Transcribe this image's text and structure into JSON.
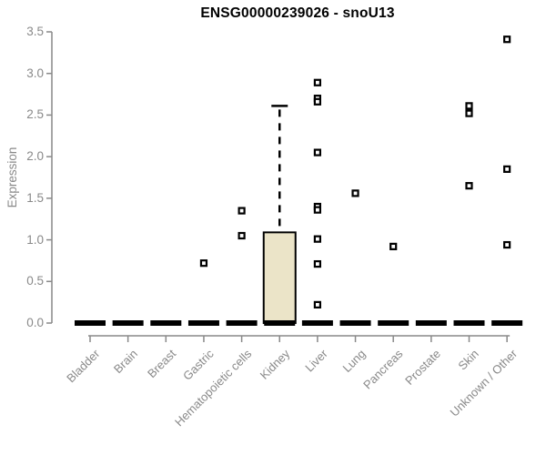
{
  "chart_data": {
    "type": "boxplot",
    "title": "ENSG00000239026 - snoU13",
    "ylabel": "Expression",
    "xlabel": "",
    "ylim": [
      0,
      3.5
    ],
    "ytick_step": 0.5,
    "grid": false,
    "legend": null,
    "categories": [
      "Bladder",
      "Brain",
      "Breast",
      "Gastric",
      "Hematopoietic cells",
      "Kidney",
      "Liver",
      "Lung",
      "Pancreas",
      "Prostate",
      "Skin",
      "Unknown / Other"
    ],
    "series": [
      {
        "category": "Bladder",
        "q1": 0,
        "median": 0,
        "q3": 0,
        "whisker_low": 0,
        "whisker_high": 0,
        "outliers": []
      },
      {
        "category": "Brain",
        "q1": 0,
        "median": 0,
        "q3": 0,
        "whisker_low": 0,
        "whisker_high": 0,
        "outliers": []
      },
      {
        "category": "Breast",
        "q1": 0,
        "median": 0,
        "q3": 0,
        "whisker_low": 0,
        "whisker_high": 0,
        "outliers": []
      },
      {
        "category": "Gastric",
        "q1": 0,
        "median": 0,
        "q3": 0,
        "whisker_low": 0,
        "whisker_high": 0,
        "outliers": [
          0.72
        ]
      },
      {
        "category": "Hematopoietic cells",
        "q1": 0,
        "median": 0,
        "q3": 0,
        "whisker_low": 0,
        "whisker_high": 0,
        "outliers": [
          1.35,
          1.05
        ]
      },
      {
        "category": "Kidney",
        "q1": 0,
        "median": 0,
        "q3": 1.09,
        "whisker_low": 0,
        "whisker_high": 2.61,
        "outliers": []
      },
      {
        "category": "Liver",
        "q1": 0,
        "median": 0,
        "q3": 0,
        "whisker_low": 0,
        "whisker_high": 0,
        "outliers": [
          2.89,
          2.7,
          2.66,
          2.05,
          1.4,
          1.36,
          1.01,
          0.71,
          0.22
        ]
      },
      {
        "category": "Lung",
        "q1": 0,
        "median": 0,
        "q3": 0,
        "whisker_low": 0,
        "whisker_high": 0,
        "outliers": [
          1.56
        ]
      },
      {
        "category": "Pancreas",
        "q1": 0,
        "median": 0,
        "q3": 0,
        "whisker_low": 0,
        "whisker_high": 0,
        "outliers": [
          0.92
        ]
      },
      {
        "category": "Prostate",
        "q1": 0,
        "median": 0,
        "q3": 0,
        "whisker_low": 0,
        "whisker_high": 0,
        "outliers": []
      },
      {
        "category": "Skin",
        "q1": 0,
        "median": 0,
        "q3": 0,
        "whisker_low": 0,
        "whisker_high": 0,
        "outliers": [
          2.61,
          2.52,
          1.65
        ]
      },
      {
        "category": "Unknown / Other",
        "q1": 0,
        "median": 0,
        "q3": 0,
        "whisker_low": 0,
        "whisker_high": 0,
        "outliers": [
          3.41,
          1.85,
          0.94
        ]
      }
    ],
    "colors": {
      "box_fill": "#EBE4C8",
      "box_border": "#000000",
      "median": "#000000",
      "whisker": "#000000",
      "point": "#000000",
      "point_center": "#ffffff",
      "axis": "#898989",
      "tick_label": "#898989",
      "title": "#000000",
      "background": "#ffffff"
    }
  }
}
